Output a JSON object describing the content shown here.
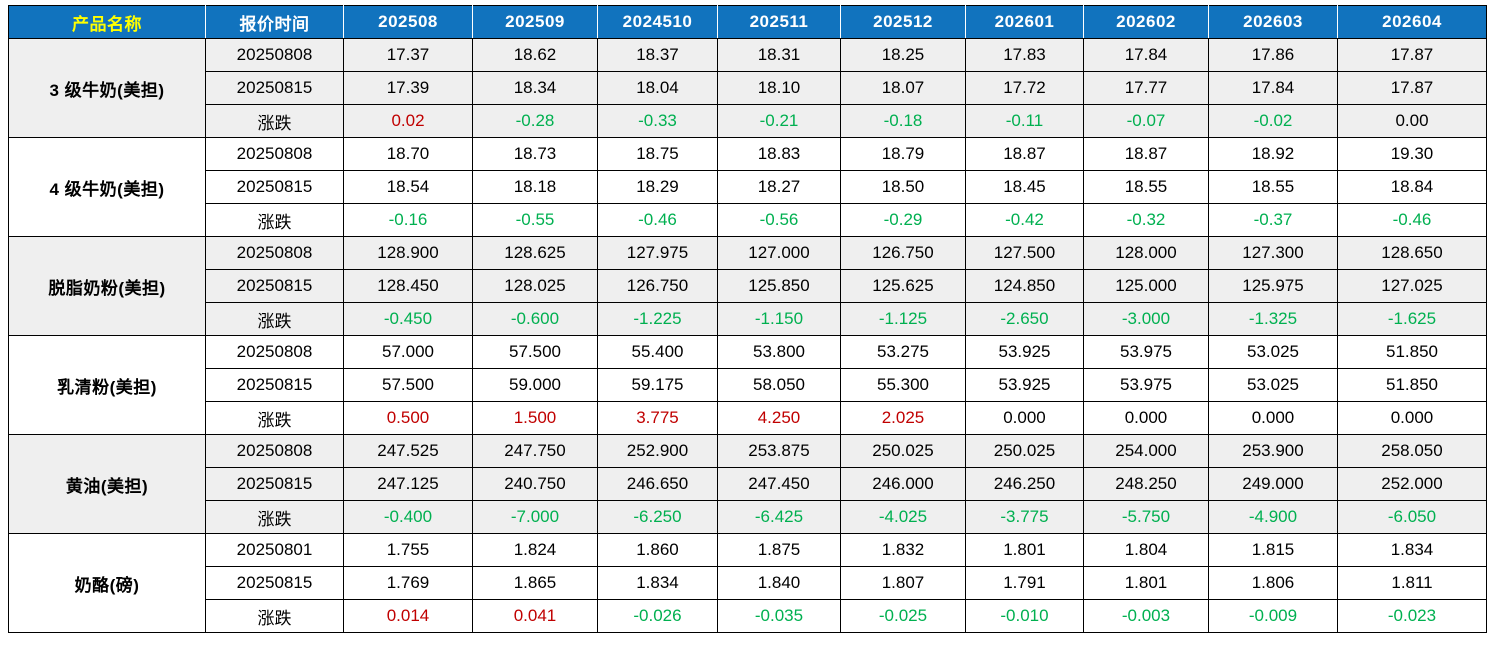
{
  "colors": {
    "header_blue": "#1173BE",
    "band_gray": "#EFEFEF",
    "up_red": "#C00000",
    "down_green": "#00B050",
    "grid_black": "#000000",
    "header_text": "#FFFFFF",
    "product_header_text": "#FFFF00"
  },
  "table": {
    "header": {
      "cols": [
        "产品名称",
        "报价时间",
        "202508",
        "202509",
        "2024510",
        "202511",
        "202512",
        "202601",
        "202602",
        "202603",
        "202604"
      ]
    },
    "groups": [
      {
        "name": "3 级牛奶(美担)",
        "rows": [
          {
            "label": "20250808",
            "type": "price",
            "values": [
              "17.37",
              "18.62",
              "18.37",
              "18.31",
              "18.25",
              "17.83",
              "17.84",
              "17.86",
              "17.87"
            ]
          },
          {
            "label": "20250815",
            "type": "price",
            "values": [
              "17.39",
              "18.34",
              "18.04",
              "18.10",
              "18.07",
              "17.72",
              "17.77",
              "17.84",
              "17.87"
            ]
          },
          {
            "label": "涨跌",
            "type": "change",
            "values": [
              "0.02",
              "-0.28",
              "-0.33",
              "-0.21",
              "-0.18",
              "-0.11",
              "-0.07",
              "-0.02",
              "0.00"
            ]
          }
        ]
      },
      {
        "name": "4 级牛奶(美担)",
        "rows": [
          {
            "label": "20250808",
            "type": "price",
            "values": [
              "18.70",
              "18.73",
              "18.75",
              "18.83",
              "18.79",
              "18.87",
              "18.87",
              "18.92",
              "19.30"
            ]
          },
          {
            "label": "20250815",
            "type": "price",
            "values": [
              "18.54",
              "18.18",
              "18.29",
              "18.27",
              "18.50",
              "18.45",
              "18.55",
              "18.55",
              "18.84"
            ]
          },
          {
            "label": "涨跌",
            "type": "change",
            "values": [
              "-0.16",
              "-0.55",
              "-0.46",
              "-0.56",
              "-0.29",
              "-0.42",
              "-0.32",
              "-0.37",
              "-0.46"
            ]
          }
        ]
      },
      {
        "name": "脱脂奶粉(美担)",
        "rows": [
          {
            "label": "20250808",
            "type": "price",
            "values": [
              "128.900",
              "128.625",
              "127.975",
              "127.000",
              "126.750",
              "127.500",
              "128.000",
              "127.300",
              "128.650"
            ]
          },
          {
            "label": "20250815",
            "type": "price",
            "values": [
              "128.450",
              "128.025",
              "126.750",
              "125.850",
              "125.625",
              "124.850",
              "125.000",
              "125.975",
              "127.025"
            ]
          },
          {
            "label": "涨跌",
            "type": "change",
            "values": [
              "-0.450",
              "-0.600",
              "-1.225",
              "-1.150",
              "-1.125",
              "-2.650",
              "-3.000",
              "-1.325",
              "-1.625"
            ]
          }
        ]
      },
      {
        "name": "乳清粉(美担)",
        "rows": [
          {
            "label": "20250808",
            "type": "price",
            "values": [
              "57.000",
              "57.500",
              "55.400",
              "53.800",
              "53.275",
              "53.925",
              "53.975",
              "53.025",
              "51.850"
            ]
          },
          {
            "label": "20250815",
            "type": "price",
            "values": [
              "57.500",
              "59.000",
              "59.175",
              "58.050",
              "55.300",
              "53.925",
              "53.975",
              "53.025",
              "51.850"
            ]
          },
          {
            "label": "涨跌",
            "type": "change",
            "values": [
              "0.500",
              "1.500",
              "3.775",
              "4.250",
              "2.025",
              "0.000",
              "0.000",
              "0.000",
              "0.000"
            ]
          }
        ]
      },
      {
        "name": "黄油(美担)",
        "rows": [
          {
            "label": "20250808",
            "type": "price",
            "values": [
              "247.525",
              "247.750",
              "252.900",
              "253.875",
              "250.025",
              "250.025",
              "254.000",
              "253.900",
              "258.050"
            ]
          },
          {
            "label": "20250815",
            "type": "price",
            "values": [
              "247.125",
              "240.750",
              "246.650",
              "247.450",
              "246.000",
              "246.250",
              "248.250",
              "249.000",
              "252.000"
            ]
          },
          {
            "label": "涨跌",
            "type": "change",
            "values": [
              "-0.400",
              "-7.000",
              "-6.250",
              "-6.425",
              "-4.025",
              "-3.775",
              "-5.750",
              "-4.900",
              "-6.050"
            ]
          }
        ]
      },
      {
        "name": "奶酪(磅)",
        "rows": [
          {
            "label": "20250801",
            "type": "price",
            "values": [
              "1.755",
              "1.824",
              "1.860",
              "1.875",
              "1.832",
              "1.801",
              "1.804",
              "1.815",
              "1.834"
            ]
          },
          {
            "label": "20250815",
            "type": "price",
            "values": [
              "1.769",
              "1.865",
              "1.834",
              "1.840",
              "1.807",
              "1.791",
              "1.801",
              "1.806",
              "1.811"
            ]
          },
          {
            "label": "涨跌",
            "type": "change",
            "values": [
              "0.014",
              "0.041",
              "-0.026",
              "-0.035",
              "-0.025",
              "-0.010",
              "-0.003",
              "-0.009",
              "-0.023"
            ]
          }
        ]
      }
    ]
  }
}
